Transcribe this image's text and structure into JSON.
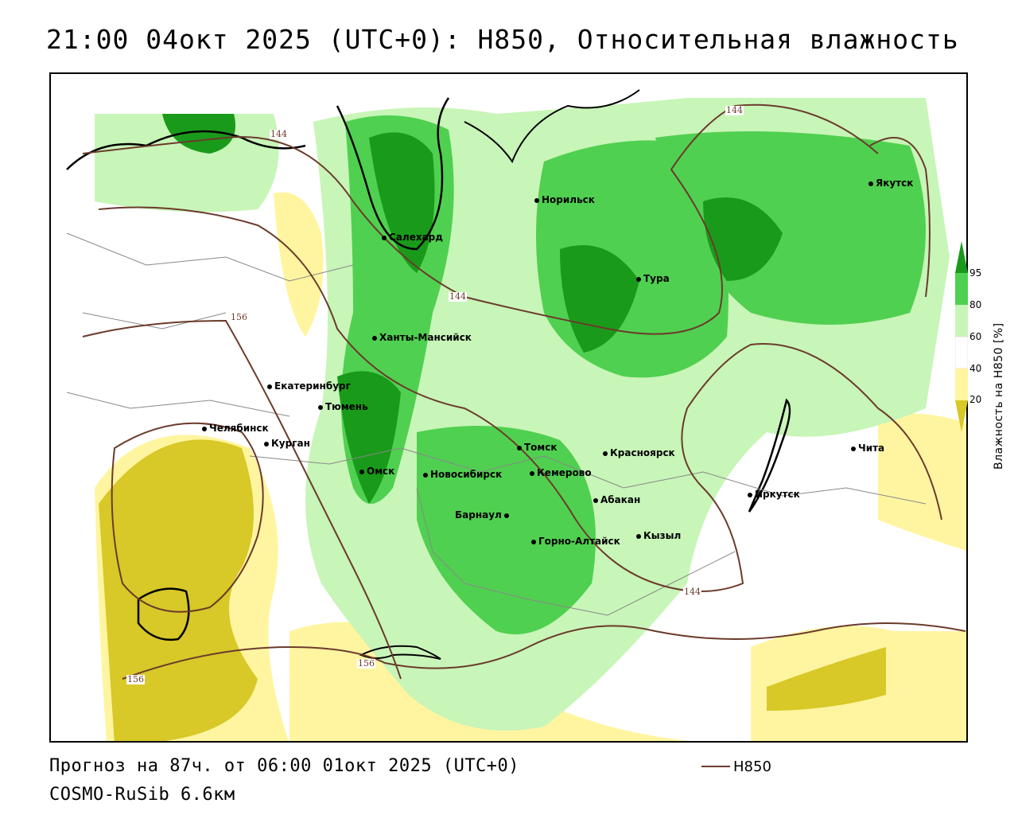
{
  "title": "21:00 04окт 2025 (UTC+0): H850, Относительная влажность",
  "footer": {
    "forecast": "Прогноз на 87ч. от 06:00 01окт 2025 (UTC+0)",
    "model": "COSMO-RuSib 6.6км"
  },
  "legend": {
    "line_label": "H850",
    "line_color": "#6b3b2c"
  },
  "colorbar": {
    "label": "Влажность на H850 [%]",
    "ticks": [
      "95",
      "80",
      "60",
      "40",
      "20"
    ],
    "colors": {
      "very_dry": "#d8c828",
      "dry": "#fff5a0",
      "neutral": "#ffffff",
      "moist": "#c8f5b8",
      "wet": "#50d050",
      "very_wet": "#1a9a1a"
    }
  },
  "cities": [
    {
      "name": "Салехард"
    },
    {
      "name": "Норильск"
    },
    {
      "name": "Якутск"
    },
    {
      "name": "Тура"
    },
    {
      "name": "Ханты-Мансийск"
    },
    {
      "name": "Екатеринбург"
    },
    {
      "name": "Тюмень"
    },
    {
      "name": "Челябинск"
    },
    {
      "name": "Курган"
    },
    {
      "name": "Омск"
    },
    {
      "name": "Новосибирск"
    },
    {
      "name": "Томск"
    },
    {
      "name": "Кемерово"
    },
    {
      "name": "Красноярск"
    },
    {
      "name": "Абакан"
    },
    {
      "name": "Барнаул"
    },
    {
      "name": "Горно-Алтайск"
    },
    {
      "name": "Кызыл"
    },
    {
      "name": "Иркутск"
    },
    {
      "name": "Чита"
    }
  ],
  "contour_labels": [
    "144",
    "144",
    "144",
    "156",
    "156",
    "156",
    "144"
  ]
}
